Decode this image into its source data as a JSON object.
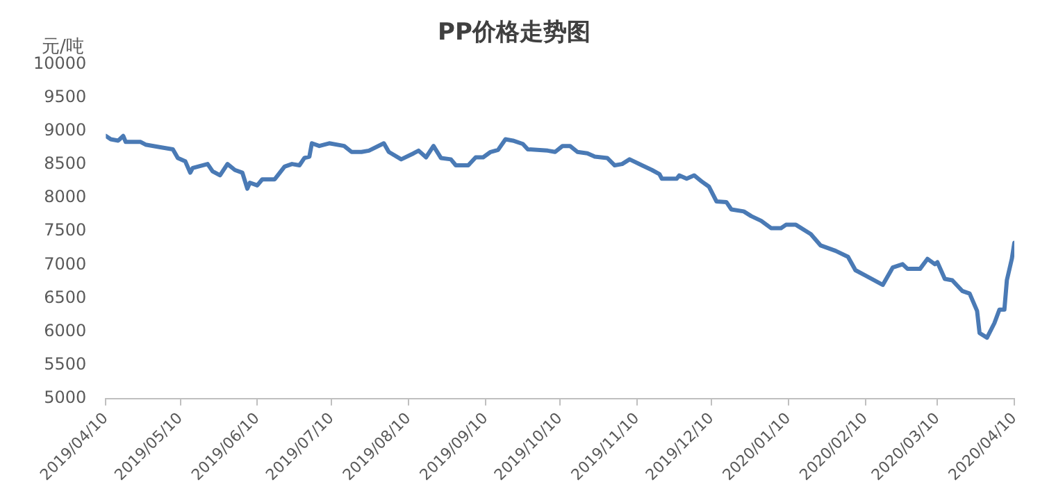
{
  "chart_data": {
    "type": "line",
    "title": "PP价格走势图",
    "ylabel": "元/吨",
    "color": "#4a7ab5",
    "grid": false,
    "legend": false,
    "marker": "none",
    "line_style": "solid",
    "x": [
      "2019-04-10",
      "2019-04-12",
      "2019-04-15",
      "2019-04-17",
      "2019-04-18",
      "2019-04-24",
      "2019-04-26",
      "2019-05-02",
      "2019-05-07",
      "2019-05-09",
      "2019-05-12",
      "2019-05-14",
      "2019-05-15",
      "2019-05-21",
      "2019-05-23",
      "2019-05-26",
      "2019-05-29",
      "2019-06-01",
      "2019-06-04",
      "2019-06-06",
      "2019-06-07",
      "2019-06-10",
      "2019-06-12",
      "2019-06-17",
      "2019-06-21",
      "2019-06-24",
      "2019-06-27",
      "2019-06-29",
      "2019-07-01",
      "2019-07-02",
      "2019-07-05",
      "2019-07-09",
      "2019-07-15",
      "2019-07-18",
      "2019-07-22",
      "2019-07-25",
      "2019-07-31",
      "2019-08-02",
      "2019-08-07",
      "2019-08-12",
      "2019-08-14",
      "2019-08-17",
      "2019-08-20",
      "2019-08-23",
      "2019-08-27",
      "2019-08-29",
      "2019-09-03",
      "2019-09-06",
      "2019-09-09",
      "2019-09-12",
      "2019-09-15",
      "2019-09-18",
      "2019-09-21",
      "2019-09-25",
      "2019-09-27",
      "2019-10-05",
      "2019-10-08",
      "2019-10-11",
      "2019-10-14",
      "2019-10-17",
      "2019-10-21",
      "2019-10-24",
      "2019-10-29",
      "2019-11-01",
      "2019-11-04",
      "2019-11-07",
      "2019-11-12",
      "2019-11-16",
      "2019-11-19",
      "2019-11-20",
      "2019-11-26",
      "2019-11-27",
      "2019-11-30",
      "2019-12-03",
      "2019-12-06",
      "2019-12-09",
      "2019-12-12",
      "2019-12-16",
      "2019-12-18",
      "2019-12-23",
      "2019-12-26",
      "2019-12-30",
      "2020-01-03",
      "2020-01-07",
      "2020-01-09",
      "2020-01-13",
      "2020-01-19",
      "2020-01-23",
      "2020-01-29",
      "2020-02-03",
      "2020-02-06",
      "2020-02-10",
      "2020-02-17",
      "2020-02-21",
      "2020-02-25",
      "2020-02-27",
      "2020-03-03",
      "2020-03-06",
      "2020-03-09",
      "2020-03-10",
      "2020-03-13",
      "2020-03-16",
      "2020-03-20",
      "2020-03-23",
      "2020-03-26",
      "2020-03-27",
      "2020-03-30",
      "2020-04-02",
      "2020-04-04",
      "2020-04-06",
      "2020-04-07",
      "2020-04-09",
      "2020-04-10"
    ],
    "values": [
      8930,
      8880,
      8860,
      8930,
      8840,
      8840,
      8800,
      8760,
      8730,
      8600,
      8550,
      8380,
      8450,
      8510,
      8400,
      8340,
      8510,
      8420,
      8380,
      8140,
      8230,
      8190,
      8280,
      8280,
      8470,
      8510,
      8490,
      8600,
      8620,
      8820,
      8780,
      8820,
      8780,
      8690,
      8690,
      8710,
      8820,
      8690,
      8580,
      8670,
      8710,
      8610,
      8780,
      8600,
      8580,
      8490,
      8490,
      8610,
      8610,
      8690,
      8720,
      8880,
      8860,
      8810,
      8730,
      8710,
      8690,
      8780,
      8780,
      8690,
      8670,
      8620,
      8600,
      8490,
      8510,
      8580,
      8490,
      8420,
      8360,
      8290,
      8290,
      8340,
      8290,
      8340,
      8250,
      8170,
      7950,
      7940,
      7830,
      7800,
      7730,
      7660,
      7550,
      7550,
      7600,
      7600,
      7460,
      7290,
      7210,
      7120,
      6920,
      6840,
      6700,
      6960,
      7010,
      6940,
      6940,
      7090,
      7010,
      7040,
      6790,
      6770,
      6610,
      6570,
      6310,
      5980,
      5910,
      6130,
      6330,
      6330,
      6770,
      7090,
      7330
    ],
    "xlim": [
      "2019-04-10",
      "2020-04-10"
    ],
    "xticks": [
      {
        "value": "2019-04-10",
        "label": "2019/04/10"
      },
      {
        "value": "2019-05-10",
        "label": "2019/05/10"
      },
      {
        "value": "2019-06-10",
        "label": "2019/06/10"
      },
      {
        "value": "2019-07-10",
        "label": "2019/07/10"
      },
      {
        "value": "2019-08-10",
        "label": "2019/08/10"
      },
      {
        "value": "2019-09-10",
        "label": "2019/09/10"
      },
      {
        "value": "2019-10-10",
        "label": "2019/10/10"
      },
      {
        "value": "2019-11-10",
        "label": "2019/11/10"
      },
      {
        "value": "2019-12-10",
        "label": "2019/12/10"
      },
      {
        "value": "2020-01-10",
        "label": "2020/01/10"
      },
      {
        "value": "2020-02-10",
        "label": "2020/02/10"
      },
      {
        "value": "2020-03-10",
        "label": "2020/03/10"
      },
      {
        "value": "2020-04-10",
        "label": "2020/04/10"
      }
    ],
    "ylim": [
      5000,
      10000
    ],
    "yticks": [
      5000,
      5500,
      6000,
      6500,
      7000,
      7500,
      8000,
      8500,
      9000,
      9500,
      10000
    ]
  }
}
